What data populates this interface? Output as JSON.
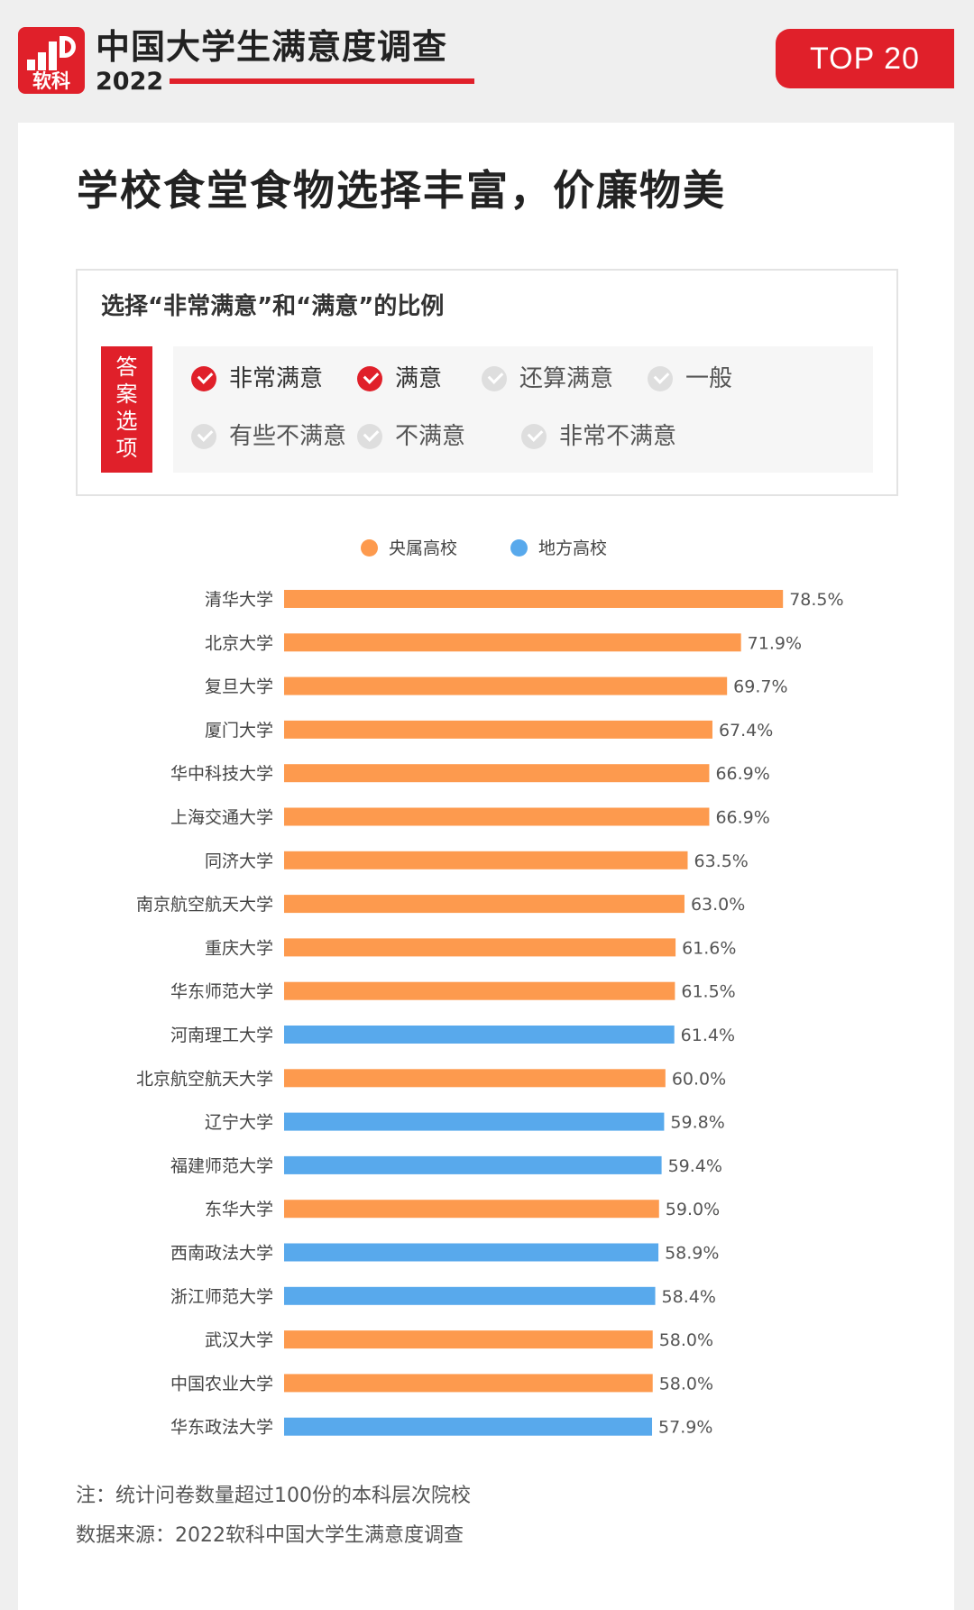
{
  "header": {
    "brand": "软科",
    "title": "中国大学生满意度调查",
    "year": "2022",
    "badge": "TOP 20"
  },
  "headline": "学校食堂食物选择丰富，价廉物美",
  "question": {
    "title": "选择“非常满意”和“满意”的比例",
    "options_label": "答案选项",
    "options": [
      {
        "label": "非常满意",
        "selected": true
      },
      {
        "label": "满意",
        "selected": true
      },
      {
        "label": "还算满意",
        "selected": false
      },
      {
        "label": "一般",
        "selected": false
      },
      {
        "label": "有些不满意",
        "selected": false
      },
      {
        "label": "不满意",
        "selected": false
      },
      {
        "label": "非常不满意",
        "selected": false
      }
    ]
  },
  "colors": {
    "accent": "#e0202a",
    "central": "#fd9a4e",
    "local": "#58a9ec"
  },
  "chart_data": {
    "type": "bar",
    "orientation": "horizontal",
    "title": "",
    "xlabel": "",
    "ylabel": "",
    "xlim": [
      0,
      100
    ],
    "unit": "%",
    "grid": false,
    "legend_position": "top-center",
    "legend": [
      {
        "name": "央属高校",
        "key": "central"
      },
      {
        "name": "地方高校",
        "key": "local"
      }
    ],
    "categories": [
      "清华大学",
      "北京大学",
      "复旦大学",
      "厦门大学",
      "华中科技大学",
      "上海交通大学",
      "同济大学",
      "南京航空航天大学",
      "重庆大学",
      "华东师范大学",
      "河南理工大学",
      "北京航空航天大学",
      "辽宁大学",
      "福建师范大学",
      "东华大学",
      "西南政法大学",
      "浙江师范大学",
      "武汉大学",
      "中国农业大学",
      "华东政法大学"
    ],
    "values": [
      78.5,
      71.9,
      69.7,
      67.4,
      66.9,
      66.9,
      63.5,
      63.0,
      61.6,
      61.5,
      61.4,
      60.0,
      59.8,
      59.4,
      59.0,
      58.9,
      58.4,
      58.0,
      58.0,
      57.9
    ],
    "value_labels": [
      "78.5%",
      "71.9%",
      "69.7%",
      "67.4%",
      "66.9%",
      "66.9%",
      "63.5%",
      "63.0%",
      "61.6%",
      "61.5%",
      "61.4%",
      "60.0%",
      "59.8%",
      "59.4%",
      "59.0%",
      "58.9%",
      "58.4%",
      "58.0%",
      "58.0%",
      "57.9%"
    ],
    "groups": [
      "central",
      "central",
      "central",
      "central",
      "central",
      "central",
      "central",
      "central",
      "central",
      "central",
      "local",
      "central",
      "local",
      "local",
      "central",
      "local",
      "local",
      "central",
      "central",
      "local"
    ]
  },
  "notes": {
    "note": "注：统计问卷数量超过100份的本科层次院校",
    "source": "数据来源：2022软科中国大学生满意度调查"
  }
}
